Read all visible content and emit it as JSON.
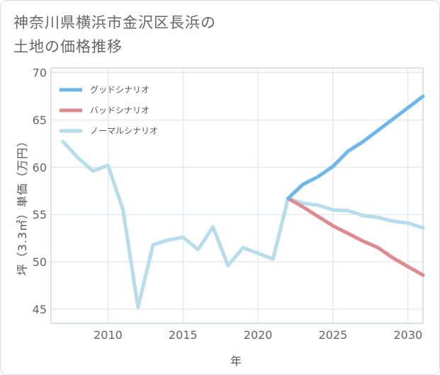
{
  "title_line1": "神奈川県横浜市金沢区長浜の",
  "title_line2": "土地の価格推移",
  "colors": {
    "good": "#6cb8ea",
    "bad": "#de8a93",
    "normal": "#b7dcec",
    "grid": "#d7e1ea",
    "frame": "#b7c4ce"
  },
  "chart_data": {
    "type": "line",
    "xlabel": "年",
    "ylabel": "坪（3.3㎡）単価（万円）",
    "xlim": [
      2006.2,
      2031
    ],
    "ylim": [
      43.5,
      70.5
    ],
    "xticks": [
      2010,
      2015,
      2020,
      2025,
      2030
    ],
    "yticks": [
      45,
      50,
      55,
      60,
      65,
      70
    ],
    "grid": true,
    "legend_position": "top-left",
    "series": [
      {
        "name": "グッドシナリオ",
        "color_key": "good",
        "x": [
          2022,
          2023,
          2024,
          2025,
          2026,
          2027,
          2028,
          2029,
          2030,
          2031
        ],
        "y": [
          56.7,
          58.2,
          59.0,
          60.1,
          61.7,
          62.7,
          63.9,
          65.1,
          66.3,
          67.5
        ]
      },
      {
        "name": "バッドシナリオ",
        "color_key": "bad",
        "x": [
          2022,
          2023,
          2024,
          2025,
          2026,
          2027,
          2028,
          2029,
          2030,
          2031
        ],
        "y": [
          56.7,
          55.8,
          54.8,
          53.8,
          53.0,
          52.2,
          51.5,
          50.4,
          49.5,
          48.6
        ]
      },
      {
        "name": "ノーマルシナリオ",
        "color_key": "normal",
        "x": [
          2007,
          2008,
          2009,
          2010,
          2011,
          2012,
          2013,
          2014,
          2015,
          2016,
          2017,
          2018,
          2019,
          2020,
          2021,
          2022,
          2023,
          2024,
          2025,
          2026,
          2027,
          2028,
          2029,
          2030,
          2031
        ],
        "y": [
          62.7,
          61.0,
          59.6,
          60.2,
          55.5,
          45.2,
          51.8,
          52.3,
          52.6,
          51.3,
          53.7,
          49.6,
          51.5,
          50.9,
          50.3,
          56.7,
          56.2,
          56.0,
          55.5,
          55.4,
          54.9,
          54.7,
          54.3,
          54.1,
          53.6
        ]
      }
    ]
  }
}
